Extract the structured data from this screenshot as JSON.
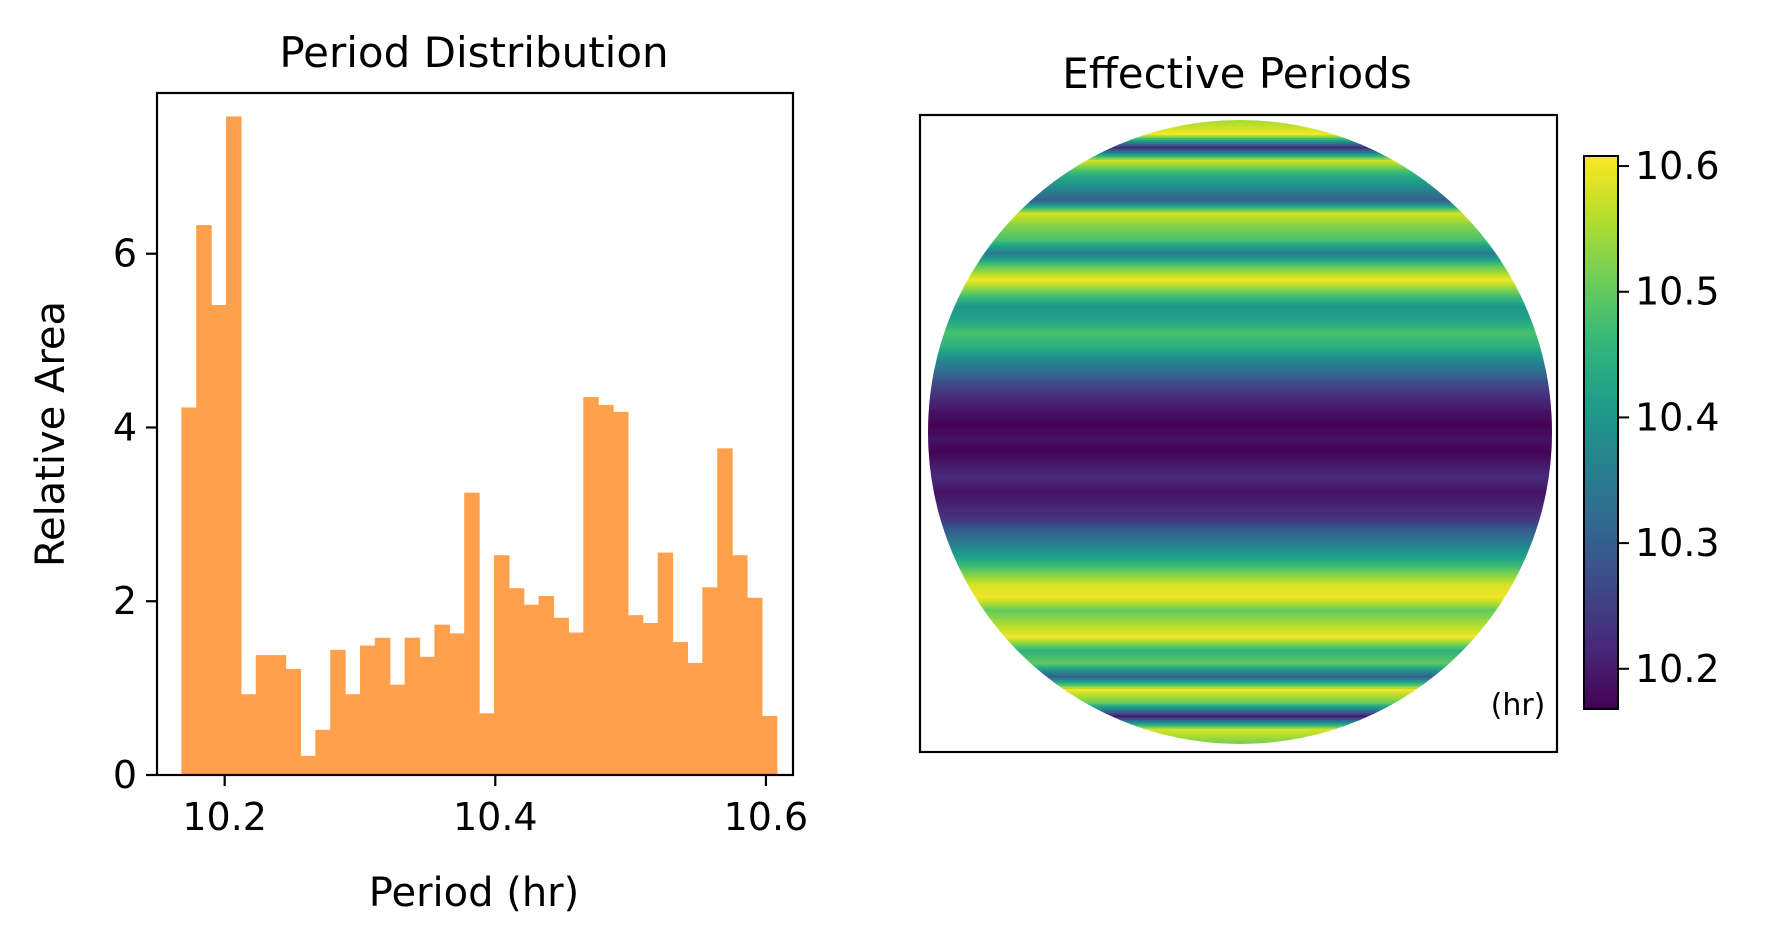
{
  "chart_data": [
    {
      "type": "bar",
      "title": "Period Distribution",
      "xlabel": "Period (hr)",
      "ylabel": "Relative Area",
      "xlim": [
        10.15,
        10.62
      ],
      "ylim": [
        0,
        7.85
      ],
      "xticks": [
        10.2,
        10.4,
        10.6
      ],
      "xtick_labels": [
        "10.2",
        "10.4",
        "10.6"
      ],
      "yticks": [
        0,
        2,
        4,
        6
      ],
      "ytick_labels": [
        "0",
        "2",
        "4",
        "6"
      ],
      "bar_color": "#FFA04D",
      "bin_start": 10.168,
      "bin_width": 0.011,
      "values": [
        4.23,
        6.33,
        5.41,
        7.58,
        0.93,
        1.38,
        1.38,
        1.22,
        0.22,
        0.52,
        1.44,
        0.93,
        1.49,
        1.58,
        1.04,
        1.58,
        1.36,
        1.73,
        1.63,
        3.25,
        0.71,
        2.53,
        2.15,
        1.96,
        2.06,
        1.81,
        1.64,
        4.35,
        4.26,
        4.18,
        1.84,
        1.75,
        2.56,
        1.53,
        1.29,
        2.16,
        3.76,
        2.53,
        2.04,
        0.68
      ],
      "grid": false
    },
    {
      "type": "heatmap",
      "title": "Effective Periods",
      "shape": "disk",
      "colormap": "viridis",
      "colorbar_range": [
        10.168,
        10.608
      ],
      "colorbar_ticks": [
        10.2,
        10.3,
        10.4,
        10.5,
        10.6
      ],
      "colorbar_tick_labels": [
        "10.2",
        "10.3",
        "10.4",
        "10.5",
        "10.6"
      ],
      "unit_label": "(hr)",
      "row_profile": [
        10.55,
        10.6,
        10.22,
        10.58,
        10.45,
        10.38,
        10.3,
        10.58,
        10.52,
        10.48,
        10.35,
        10.5,
        10.6,
        10.5,
        10.4,
        10.42,
        10.48,
        10.45,
        10.38,
        10.32,
        10.26,
        10.22,
        10.19,
        10.17,
        10.19,
        10.17,
        10.2,
        10.22,
        10.19,
        10.21,
        10.23,
        10.3,
        10.36,
        10.42,
        10.5,
        10.58,
        10.6,
        10.5,
        10.55,
        10.6,
        10.45,
        10.5,
        10.3,
        10.6,
        10.5,
        10.2,
        10.58,
        10.52
      ]
    }
  ]
}
